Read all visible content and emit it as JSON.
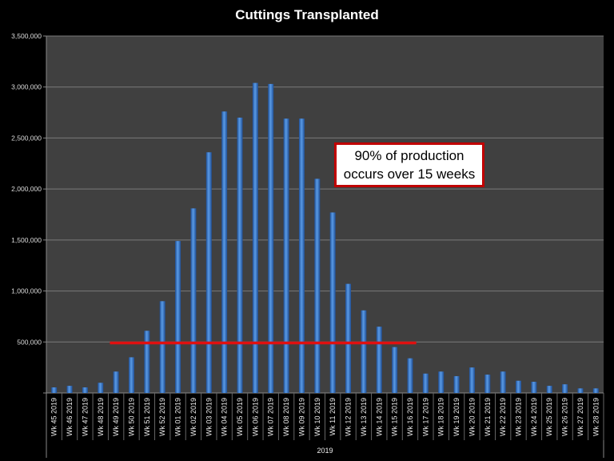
{
  "chart_data": {
    "type": "bar",
    "title": "Cuttings Transplanted",
    "xlabel": "2019",
    "ylabel": "",
    "ylim": [
      0,
      3500000
    ],
    "yticks": [
      0,
      500000,
      1000000,
      1500000,
      2000000,
      2500000,
      3000000,
      3500000
    ],
    "ytick_labels": [
      "",
      "500,000",
      "1,000,000",
      "1,500,000",
      "2,000,000",
      "2,500,000",
      "3,000,000",
      "3,500,000"
    ],
    "grid": true,
    "categories": [
      "Wk 45 2019",
      "Wk 46 2019",
      "Wk 47 2019",
      "Wk 48 2019",
      "Wk 49 2019",
      "Wk 50 2019",
      "Wk 51 2019",
      "Wk 52 2019",
      "Wk 01 2019",
      "Wk 02 2019",
      "Wk 03 2019",
      "Wk 04 2019",
      "Wk 05 2019",
      "Wk 06 2019",
      "Wk 07 2019",
      "Wk 08 2019",
      "Wk 09 2019",
      "Wk 10 2019",
      "Wk 11 2019",
      "Wk 12 2019",
      "Wk 13 2019",
      "Wk 14 2019",
      "Wk 15 2019",
      "Wk 16 2019",
      "Wk 17 2019",
      "Wk 18 2019",
      "Wk 19 2019",
      "Wk 20 2019",
      "Wk 21 2019",
      "Wk 22 2019",
      "Wk 23 2019",
      "Wk 24 2019",
      "Wk 25 2019",
      "Wk 26 2019",
      "Wk 27 2019",
      "Wk 28 2019"
    ],
    "values": [
      55000,
      70000,
      55000,
      100000,
      210000,
      350000,
      610000,
      900000,
      1490000,
      1810000,
      2360000,
      2760000,
      2700000,
      3040000,
      3030000,
      2690000,
      2690000,
      2100000,
      1770000,
      1070000,
      810000,
      650000,
      450000,
      340000,
      190000,
      210000,
      165000,
      250000,
      180000,
      210000,
      120000,
      110000,
      70000,
      85000,
      45000,
      45000
    ],
    "reference_line": {
      "value": 490000,
      "from": "Wk 49 2019",
      "to": "Wk 16 2019"
    },
    "annotation": {
      "line1": "90% of production",
      "line2": "occurs over 15 weeks"
    },
    "colors": {
      "bar": "#3a78c9",
      "plot_bg": "#404040",
      "reference": "#e01010",
      "annotation_border": "#c00000"
    }
  }
}
